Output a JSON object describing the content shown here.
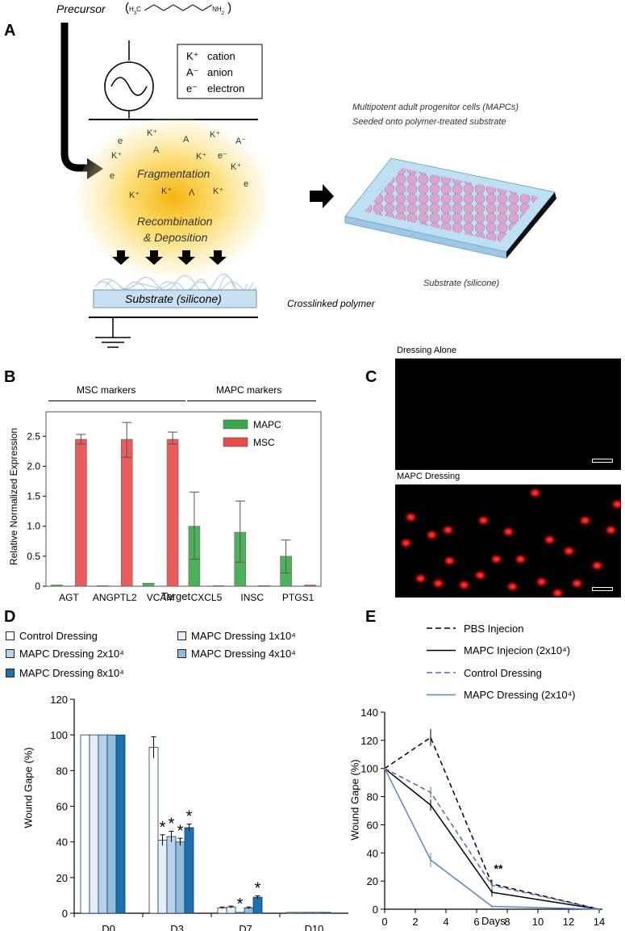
{
  "panels": {
    "A": "A",
    "B": "B",
    "C": "C",
    "D": "D",
    "E": "E"
  },
  "panelA": {
    "precursor_label": "Precursor",
    "precursor_formula_left": "H",
    "precursor_formula_sub": "3",
    "precursor_formula_c": "C",
    "precursor_formula_nh": "NH",
    "precursor_formula_nh_sub": "2",
    "legend": [
      {
        "symbol": "K⁺",
        "label": "cation"
      },
      {
        "symbol": "A⁻",
        "label": "anion"
      },
      {
        "symbol": "e⁻",
        "label": "electron"
      }
    ],
    "plasma_ions": [
      "K⁺",
      "e",
      "A",
      "K⁺",
      "A",
      "K⁺",
      "A⁻",
      "K⁺",
      "e⁻",
      "e",
      "K⁺",
      "K⁺",
      "K⁺",
      "Λ",
      "K⁺",
      "e"
    ],
    "fragmentation": "Fragmentation",
    "recombination": "Recombination",
    "deposition": "& Deposition",
    "substrate_left": "Substrate (silicone)",
    "crosslinked": "Crosslinked polymer",
    "mapc_title_1": "Multipotent adult progenitor cells (MAPCs)",
    "mapc_title_2": "Seeded onto polymer-treated substrate",
    "substrate_right": "Substrate (silicone)"
  },
  "panelB": {
    "group_left": "MSC markers",
    "group_right": "MAPC markers",
    "ylabel": "Relative Normalized Expression",
    "xlabel": "Target",
    "legend_mapc": "MAPC",
    "legend_msc": "MSC"
  },
  "panelC": {
    "top_label": "Dressing Alone",
    "bottom_label": "MAPC Dressing"
  },
  "chart_data": [
    {
      "type": "bar",
      "panel": "B",
      "categories": [
        "AGT",
        "ANGPTL2",
        "VCAM",
        "CXCL5",
        "INSC",
        "PTGS1"
      ],
      "series": [
        {
          "name": "MAPC",
          "values": [
            0.02,
            0.01,
            0.05,
            1.0,
            0.9,
            0.5
          ],
          "err_lo": [
            0.01,
            0.005,
            0.03,
            0.55,
            0.5,
            0.28
          ],
          "err_hi": [
            0.02,
            0.01,
            0.03,
            0.57,
            0.52,
            0.27
          ],
          "color": "#3aa84a"
        },
        {
          "name": "MSC",
          "values": [
            2.45,
            2.45,
            2.45,
            0.01,
            0.01,
            0.02
          ],
          "err_lo": [
            0.08,
            0.3,
            0.08,
            0.005,
            0.005,
            0.01
          ],
          "err_hi": [
            0.08,
            0.28,
            0.12,
            0.005,
            0.005,
            0.01
          ],
          "color": "#e84a4a"
        }
      ],
      "ylim": [
        0,
        2.8
      ],
      "yticks": [
        "0",
        "0.5",
        "1.0",
        "1.5",
        "2.0",
        "2.5"
      ],
      "ytick_values": [
        0,
        0.5,
        1.0,
        1.5,
        2.0,
        2.5
      ],
      "grid": false
    },
    {
      "type": "bar",
      "panel": "D",
      "ylabel": "Wound Gape (%)",
      "categories": [
        "D0",
        "D3",
        "D7",
        "D10"
      ],
      "series": [
        {
          "name": "Control Dressing",
          "values": [
            100,
            93,
            3,
            0.5
          ],
          "err": [
            0,
            6,
            0.5,
            0.2
          ],
          "color": "#ffffff"
        },
        {
          "name": "MAPC Dressing 1x10⁴",
          "values": [
            100,
            41,
            3.5,
            0.5
          ],
          "err": [
            0,
            3,
            0.5,
            0.2
          ],
          "color": "#e4eef6"
        },
        {
          "name": "MAPC Dressing 2x10⁴",
          "values": [
            100,
            43,
            0.5,
            0.5
          ],
          "err": [
            0,
            3,
            0.3,
            0.2
          ],
          "color": "#b6d3ea"
        },
        {
          "name": "MAPC Dressing 4x10⁴",
          "values": [
            100,
            40,
            3,
            0.5
          ],
          "err": [
            0,
            2,
            0.5,
            0.2
          ],
          "color": "#8fbde0"
        },
        {
          "name": "MAPC Dressing 8x10⁴",
          "values": [
            100,
            48,
            9,
            0.5
          ],
          "err": [
            0,
            2,
            0.8,
            0.2
          ],
          "color": "#1d6fb0"
        }
      ],
      "asterisks": [
        [
          1,
          1
        ],
        [
          1,
          2
        ],
        [
          1,
          3
        ],
        [
          1,
          4
        ],
        [
          2,
          2
        ],
        [
          2,
          4
        ]
      ],
      "asterisk_label": "*",
      "ylim": [
        0,
        120
      ],
      "yticks": [
        "0",
        "20",
        "40",
        "60",
        "80",
        "100",
        "120"
      ],
      "ytick_values": [
        0,
        20,
        40,
        60,
        80,
        100,
        120
      ],
      "legend": "top",
      "grid": false
    },
    {
      "type": "line",
      "panel": "E",
      "ylabel": "Wound Gape (%)",
      "xlabel": "Days",
      "series": [
        {
          "name": "PBS Injecion",
          "x": [
            0,
            3,
            7,
            14
          ],
          "y": [
            100,
            122,
            18,
            0
          ],
          "err": [
            0,
            6,
            3,
            0
          ],
          "color": "#000000",
          "dash": true
        },
        {
          "name": "MAPC Injecion (2x10⁴)",
          "x": [
            0,
            3,
            7,
            14
          ],
          "y": [
            100,
            74,
            12,
            0
          ],
          "err": [
            0,
            4,
            3,
            0
          ],
          "color": "#000000",
          "dash": false
        },
        {
          "name": "Control Dressing",
          "x": [
            0,
            3,
            7,
            14
          ],
          "y": [
            100,
            83,
            17,
            0
          ],
          "err": [
            0,
            4,
            3,
            0
          ],
          "color": "#4a6fa8",
          "dash": true
        },
        {
          "name": "MAPC Dressing (2x10⁴)",
          "x": [
            0,
            3,
            7,
            14
          ],
          "y": [
            100,
            35,
            2,
            0
          ],
          "err": [
            0,
            5,
            1,
            0
          ],
          "color": "#5a85c7",
          "dash": false
        }
      ],
      "annotation": "**",
      "xlim": [
        0,
        14
      ],
      "ylim": [
        0,
        140
      ],
      "xticks": [
        "0",
        "2",
        "4",
        "6",
        "8",
        "10",
        "12",
        "14"
      ],
      "xtick_values": [
        0,
        2,
        4,
        6,
        8,
        10,
        12,
        14
      ],
      "yticks": [
        "0",
        "20",
        "40",
        "60",
        "80",
        "100",
        "120",
        "140"
      ],
      "ytick_values": [
        0,
        20,
        40,
        60,
        80,
        100,
        120,
        140
      ],
      "legend": "top",
      "grid": false
    }
  ]
}
